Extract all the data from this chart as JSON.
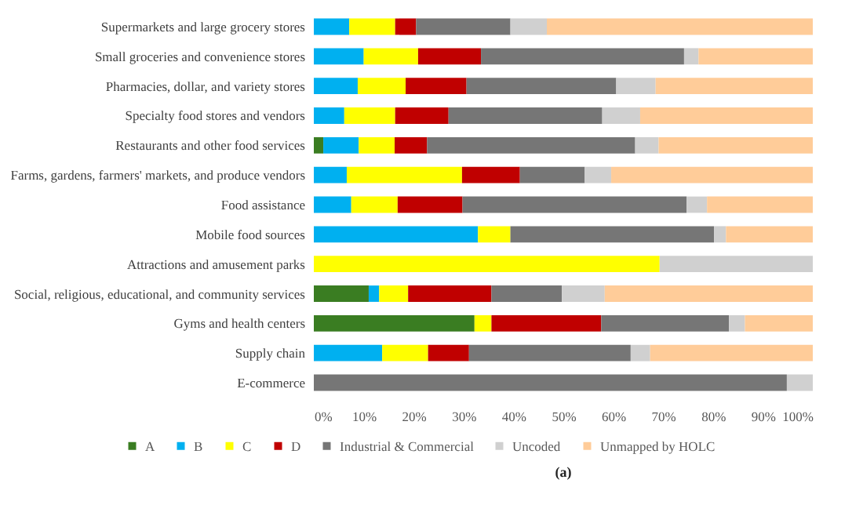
{
  "chart_data": {
    "type": "bar",
    "orientation": "horizontal",
    "stacked": true,
    "categories": [
      "Supermarkets and large grocery stores",
      "Small groceries and convenience stores",
      "Pharmacies, dollar, and variety stores",
      "Specialty food stores and vendors",
      "Restaurants and other food services",
      "Farms, gardens, farmers' markets, and produce vendors",
      "Food assistance",
      "Mobile food sources",
      "Attractions and amusement parks",
      "Social, religious, educational, and community services",
      "Gyms and health centers",
      "Supply chain",
      "E-commerce"
    ],
    "series": [
      {
        "name": "A",
        "color": "#3a7d22",
        "values": [
          null,
          null,
          null,
          null,
          1.9,
          null,
          null,
          null,
          null,
          11.0,
          32.2,
          null,
          null
        ]
      },
      {
        "name": "B",
        "color": "#00b0f0",
        "values": [
          7.1,
          10.0,
          8.8,
          6.1,
          7.1,
          6.6,
          7.5,
          32.9,
          null,
          2.1,
          null,
          13.7,
          null
        ]
      },
      {
        "name": "C",
        "color": "#ffff00",
        "values": [
          9.2,
          10.9,
          9.6,
          10.2,
          7.2,
          23.1,
          9.3,
          6.5,
          69.3,
          5.8,
          3.4,
          9.2,
          null
        ]
      },
      {
        "name": "D",
        "color": "#c00000",
        "values": [
          4.2,
          12.6,
          12.2,
          10.7,
          6.5,
          11.6,
          13.0,
          null,
          null,
          16.7,
          22.0,
          8.2,
          null
        ]
      },
      {
        "name": "Industrial & Commercial",
        "color": "#767676",
        "values": [
          18.9,
          40.7,
          30.0,
          30.8,
          41.7,
          13.0,
          44.9,
          40.8,
          null,
          14.1,
          25.6,
          32.4,
          94.8
        ]
      },
      {
        "name": "Uncoded",
        "color": "#d0d0d0",
        "values": [
          7.3,
          2.9,
          7.9,
          7.6,
          4.7,
          5.3,
          4.1,
          2.4,
          30.7,
          8.6,
          3.2,
          3.9,
          5.2
        ]
      },
      {
        "name": "Unmapped  by HOLC",
        "color": "#ffcc99",
        "values": [
          53.3,
          22.9,
          31.5,
          34.6,
          30.9,
          40.4,
          21.2,
          17.4,
          null,
          41.7,
          13.6,
          32.6,
          null
        ]
      }
    ],
    "xlim": [
      0,
      100
    ],
    "xticks": [
      {
        "value": 0,
        "label": "0%"
      },
      {
        "value": 10,
        "label": "10%"
      },
      {
        "value": 20,
        "label": "20%"
      },
      {
        "value": 30,
        "label": "30%"
      },
      {
        "value": 40,
        "label": "40%"
      },
      {
        "value": 50,
        "label": "50%"
      },
      {
        "value": 60,
        "label": "60%"
      },
      {
        "value": 70,
        "label": "70%"
      },
      {
        "value": 80,
        "label": "80%"
      },
      {
        "value": 90,
        "label": "90%"
      },
      {
        "value": 100,
        "label": "100%"
      }
    ],
    "grid": false,
    "legend": "bottom",
    "annotations": [
      "(a)"
    ]
  }
}
